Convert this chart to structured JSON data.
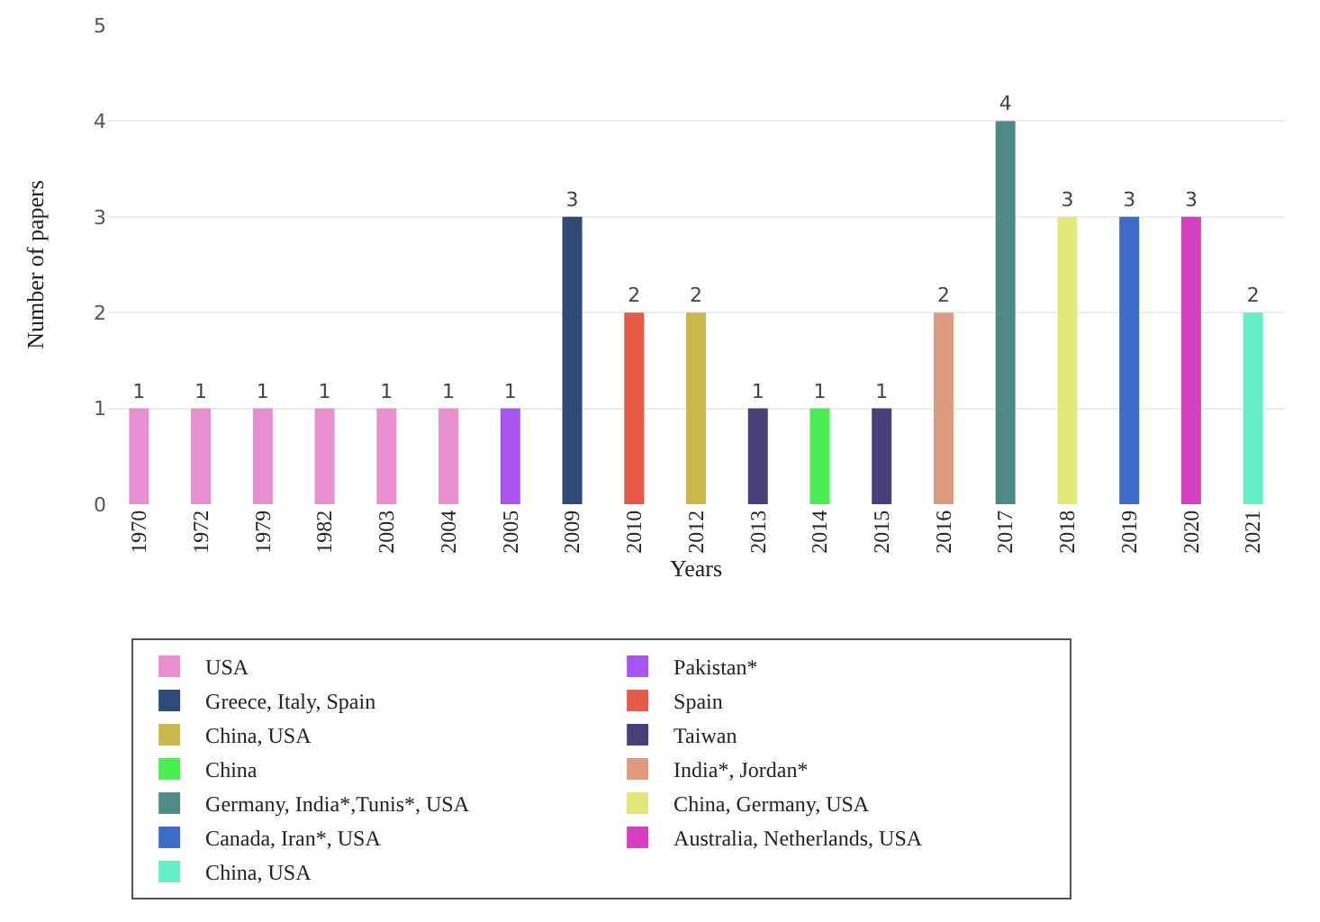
{
  "chart_data": {
    "type": "bar",
    "xlabel": "Years",
    "ylabel": "Number of papers",
    "categories": [
      "1970",
      "1972",
      "1979",
      "1982",
      "2003",
      "2004",
      "2005",
      "2009",
      "2010",
      "2012",
      "2013",
      "2014",
      "2015",
      "2016",
      "2017",
      "2018",
      "2019",
      "2020",
      "2021"
    ],
    "series": [
      {
        "name": "USA",
        "color": "#e88fcf",
        "values": [
          1,
          1,
          1,
          1,
          1,
          1,
          null,
          null,
          null,
          null,
          null,
          null,
          null,
          null,
          null,
          null,
          null,
          null,
          null
        ]
      },
      {
        "name": "Pakistan*",
        "color": "#a855f0",
        "values": [
          null,
          null,
          null,
          null,
          null,
          null,
          1,
          null,
          null,
          null,
          null,
          null,
          null,
          null,
          null,
          null,
          null,
          null,
          null
        ]
      },
      {
        "name": "Greece, Italy, Spain",
        "color": "#2e4a78",
        "values": [
          null,
          null,
          null,
          null,
          null,
          null,
          null,
          3,
          null,
          null,
          null,
          null,
          null,
          null,
          null,
          null,
          null,
          null,
          null
        ]
      },
      {
        "name": "Spain",
        "color": "#e65a4a",
        "values": [
          null,
          null,
          null,
          null,
          null,
          null,
          null,
          null,
          2,
          null,
          null,
          null,
          null,
          null,
          null,
          null,
          null,
          null,
          null
        ]
      },
      {
        "name": "China, USA",
        "color": "#c9b84a",
        "values": [
          null,
          null,
          null,
          null,
          null,
          null,
          null,
          null,
          null,
          2,
          null,
          null,
          null,
          null,
          null,
          null,
          null,
          null,
          null
        ]
      },
      {
        "name": "Taiwan",
        "color": "#4a3f78",
        "values": [
          null,
          null,
          null,
          null,
          null,
          null,
          null,
          null,
          null,
          null,
          1,
          null,
          1,
          null,
          null,
          null,
          null,
          null,
          null
        ]
      },
      {
        "name": "China",
        "color": "#4ced52",
        "values": [
          null,
          null,
          null,
          null,
          null,
          null,
          null,
          null,
          null,
          null,
          null,
          1,
          null,
          null,
          null,
          null,
          null,
          null,
          null
        ]
      },
      {
        "name": "India*, Jordan*",
        "color": "#dd9a80",
        "values": [
          null,
          null,
          null,
          null,
          null,
          null,
          null,
          null,
          null,
          null,
          null,
          null,
          null,
          2,
          null,
          null,
          null,
          null,
          null
        ]
      },
      {
        "name": "Germany, India*,Tunis*, USA",
        "color": "#4f8a88",
        "values": [
          null,
          null,
          null,
          null,
          null,
          null,
          null,
          null,
          null,
          null,
          null,
          null,
          null,
          null,
          4,
          null,
          null,
          null,
          null
        ]
      },
      {
        "name": "China, Germany, USA",
        "color": "#e4e87a",
        "values": [
          null,
          null,
          null,
          null,
          null,
          null,
          null,
          null,
          null,
          null,
          null,
          null,
          null,
          null,
          null,
          3,
          null,
          null,
          null
        ]
      },
      {
        "name": "Canada, Iran*, USA",
        "color": "#3d6cc8",
        "values": [
          null,
          null,
          null,
          null,
          null,
          null,
          null,
          null,
          null,
          null,
          null,
          null,
          null,
          null,
          null,
          null,
          3,
          null,
          null
        ]
      },
      {
        "name": "Australia, Netherlands, USA",
        "color": "#d63fbd",
        "values": [
          null,
          null,
          null,
          null,
          null,
          null,
          null,
          null,
          null,
          null,
          null,
          null,
          null,
          null,
          null,
          null,
          null,
          3,
          null
        ]
      },
      {
        "name": "China, USA",
        "color": "#66eec4",
        "values": [
          null,
          null,
          null,
          null,
          null,
          null,
          null,
          null,
          null,
          null,
          null,
          null,
          null,
          null,
          null,
          null,
          null,
          null,
          2
        ]
      }
    ],
    "ylim": [
      0,
      5
    ],
    "yticks": [
      0,
      1,
      2,
      3,
      4,
      5
    ],
    "grid": "y",
    "data_labels": true,
    "legend": "bottom"
  }
}
